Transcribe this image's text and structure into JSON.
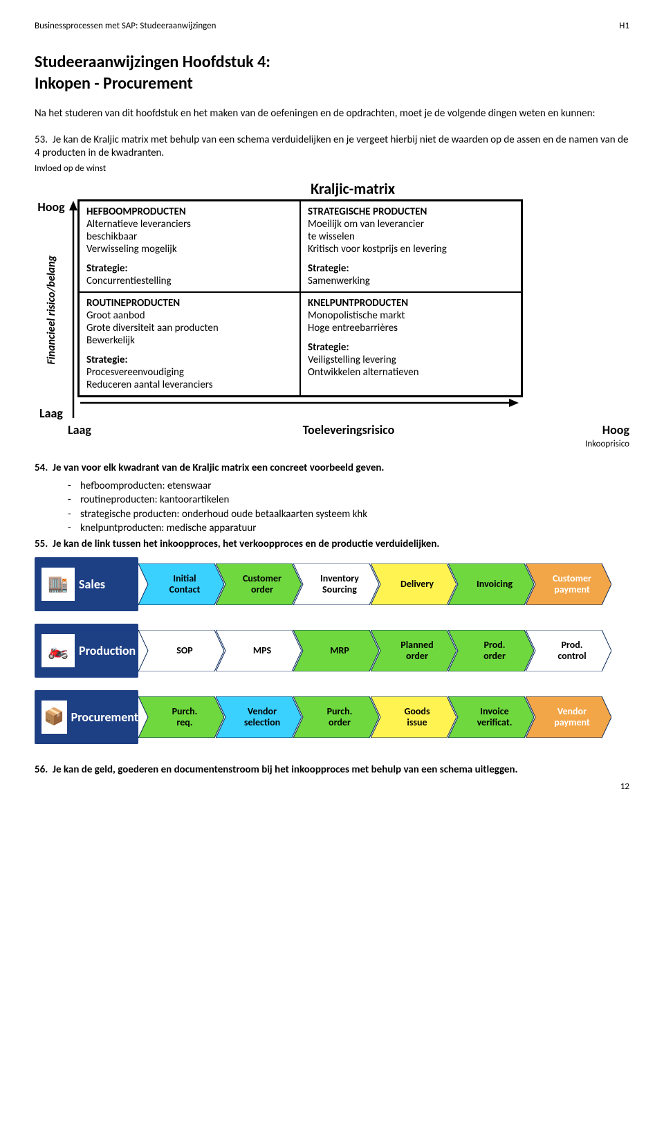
{
  "header": {
    "left": "Businessprocessen met SAP: Studeeraanwijzingen",
    "right": "H1"
  },
  "title": "Studeeraanwijzingen Hoofdstuk 4:",
  "subtitle": "Inkopen - Procurement",
  "intro": "Na het studeren van dit hoofdstuk en het maken van de oefeningen en de opdrachten, moet je de volgende dingen weten en kunnen:",
  "items": {
    "i53": {
      "num": "53.",
      "text": "Je kan de Kraljic matrix met behulp van een schema verduidelijken en je vergeet hierbij niet de waarden op de assen en de namen van de 4 producten in de kwadranten."
    },
    "i54": {
      "num": "54.",
      "text": "Je van voor elk kwadrant van de Kraljic matrix een concreet voorbeeld geven."
    },
    "i55": {
      "num": "55.",
      "text": "Je kan de link tussen het inkoopproces, het verkoopproces en de productie verduidelijken."
    },
    "i56": {
      "num": "56.",
      "text": "Je kan de geld, goederen en documentenstroom bij het inkoopproces met behulp van een schema uitleggen."
    }
  },
  "axis_top_label": "Invloed op de winst",
  "kraljic": {
    "title": "Kraljic-matrix",
    "y_axis": "Financieel risico/belang",
    "y_high": "Hoog",
    "y_low": "Laag",
    "x_low": "Laag",
    "x_mid": "Toeleveringsrisico",
    "x_high": "Hoog",
    "q": {
      "tl": {
        "title": "HEFBOOMPRODUCTEN",
        "l1": "Alternatieve leveranciers",
        "l2": "beschikbaar",
        "l3": "Verwisseling mogelijk",
        "st_label": "Strategie:",
        "st": "Concurrentiestelling"
      },
      "tr": {
        "title": "STRATEGISCHE PRODUCTEN",
        "l1": "Moeilijk om van leverancier",
        "l2": "te wisselen",
        "l3": "Kritisch voor kostprijs en levering",
        "st_label": "Strategie:",
        "st": "Samenwerking"
      },
      "bl": {
        "title": "ROUTINEPRODUCTEN",
        "l1": "Groot aanbod",
        "l2": "Grote diversiteit aan producten",
        "l3": "Bewerkelijk",
        "st_label": "Strategie:",
        "st1": "Procesvereenvoudiging",
        "st2": "Reduceren aantal leveranciers"
      },
      "br": {
        "title": "KNELPUNTPRODUCTEN",
        "l1": "Monopolistische markt",
        "l2": "Hoge entreebarrières",
        "l3": "",
        "st_label": "Strategie:",
        "st1": "Veiligstelling levering",
        "st2": "Ontwikkelen alternatieven"
      }
    }
  },
  "inkooprisico_label": "Inkooprisico",
  "bullets": {
    "b1": "hefboomproducten: etenswaar",
    "b2": "routineproducten: kantoorartikelen",
    "b3": "strategische producten: onderhoud oude betaalkaarten systeem khk",
    "b4": "knelpuntproducten: medische apparatuur"
  },
  "process": {
    "colors": {
      "blue": "#1d3f84",
      "cyan": "#3bd1ff",
      "yellow": "#fff352",
      "orange": "#f3a648",
      "green": "#6fd83f",
      "white": "#ffffff"
    },
    "rows": [
      {
        "label": "Sales",
        "icon": "🏬",
        "steps": [
          {
            "text": "Initial\\nContact",
            "color": "cyan"
          },
          {
            "text": "Customer\\norder",
            "color": "green"
          },
          {
            "text": "Inventory\\nSourcing",
            "color": "white"
          },
          {
            "text": "Delivery",
            "color": "yellow"
          },
          {
            "text": "Invoicing",
            "color": "green"
          },
          {
            "text": "Customer\\npayment",
            "color": "orange"
          }
        ]
      },
      {
        "label": "Production",
        "icon": "🏍️",
        "steps": [
          {
            "text": "SOP",
            "color": "white"
          },
          {
            "text": "MPS",
            "color": "white"
          },
          {
            "text": "MRP",
            "color": "green"
          },
          {
            "text": "Planned\\norder",
            "color": "green"
          },
          {
            "text": "Prod.\\norder",
            "color": "green"
          },
          {
            "text": "Prod.\\ncontrol",
            "color": "white"
          }
        ]
      },
      {
        "label": "Procurement",
        "icon": "📦",
        "steps": [
          {
            "text": "Purch.\\nreq.",
            "color": "green"
          },
          {
            "text": "Vendor\\nselection",
            "color": "cyan"
          },
          {
            "text": "Purch.\\norder",
            "color": "green"
          },
          {
            "text": "Goods\\nissue",
            "color": "yellow"
          },
          {
            "text": "Invoice\\nverificat.",
            "color": "green"
          },
          {
            "text": "Vendor\\npayment",
            "color": "orange"
          }
        ]
      }
    ]
  },
  "pagenum": "12"
}
